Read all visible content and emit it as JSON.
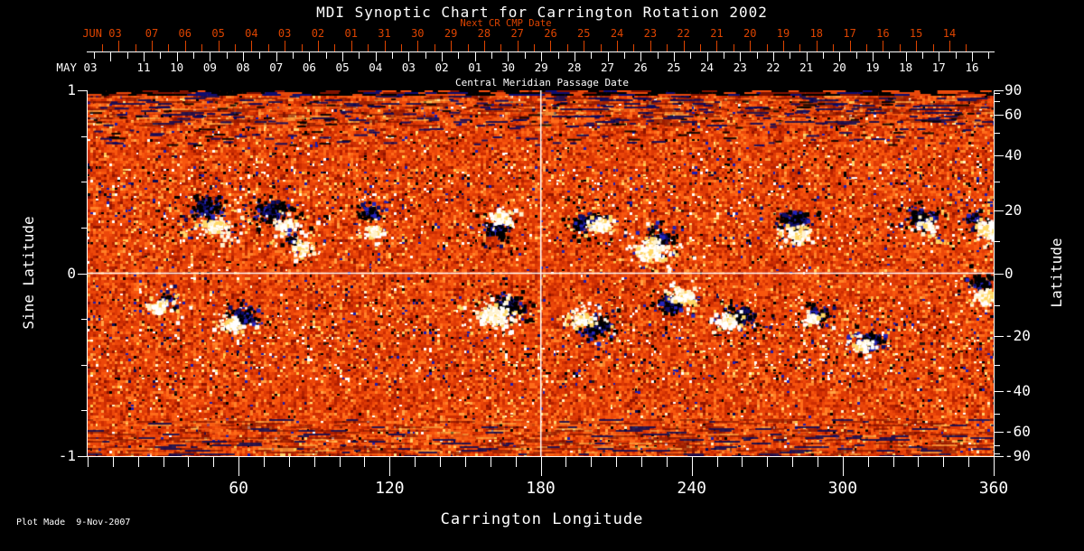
{
  "chart_data": {
    "type": "heatmap",
    "title": "MDI Synoptic Chart for Carrington Rotation 2002",
    "footer": "Plot Made  9-Nov-2007",
    "top_axis_next_cr": {
      "label": "Next CR CMP Date",
      "month_label": "JUN 03",
      "day_labels": [
        "07",
        "06",
        "05",
        "04",
        "03",
        "02",
        "01",
        "31",
        "30",
        "29",
        "28",
        "27",
        "26",
        "25",
        "24",
        "23",
        "22",
        "21",
        "20",
        "19",
        "18",
        "17",
        "16",
        "15",
        "14"
      ]
    },
    "top_axis_cmp": {
      "label": "Central Meridian Passage Date",
      "month_label": "MAY 03",
      "day_labels": [
        "11",
        "10",
        "09",
        "08",
        "07",
        "06",
        "05",
        "04",
        "03",
        "02",
        "01",
        "30",
        "29",
        "28",
        "27",
        "26",
        "25",
        "24",
        "23",
        "22",
        "21",
        "20",
        "19",
        "18",
        "17",
        "16"
      ]
    },
    "x_axis": {
      "label": "Carrington Longitude",
      "range": [
        0,
        360
      ],
      "minor_step": 10,
      "major_ticks": [
        {
          "lon": 60,
          "label": "60"
        },
        {
          "lon": 120,
          "label": "120"
        },
        {
          "lon": 180,
          "label": "180"
        },
        {
          "lon": 240,
          "label": "240"
        },
        {
          "lon": 300,
          "label": "300"
        },
        {
          "lon": 360,
          "label": "360"
        }
      ]
    },
    "y_axis_left": {
      "label": "Sine Latitude",
      "range": [
        -1,
        1
      ],
      "minor_step": 0.25,
      "major_ticks": [
        {
          "v": 1,
          "label": "1"
        },
        {
          "v": 0,
          "label": "0"
        },
        {
          "v": -1,
          "label": "-1"
        }
      ]
    },
    "y_axis_right": {
      "label": "Latitude",
      "major_ticks": [
        {
          "lat": 90,
          "label": "90"
        },
        {
          "lat": 60,
          "label": "60"
        },
        {
          "lat": 40,
          "label": "40"
        },
        {
          "lat": 20,
          "label": "20"
        },
        {
          "lat": 0,
          "label": "0"
        },
        {
          "lat": -20,
          "label": "-20"
        },
        {
          "lat": -40,
          "label": "-40"
        },
        {
          "lat": -60,
          "label": "-60"
        },
        {
          "lat": -90,
          "label": "-90"
        }
      ],
      "minor_ticks": [
        80,
        70,
        50,
        30,
        10,
        -10,
        -30,
        -50,
        -70,
        -80
      ]
    },
    "crosshair": {
      "longitude": 180,
      "latitude": 0
    },
    "colors": {
      "background": "#000000",
      "axis": "#ffffff",
      "date_axis_red": "#dd4400",
      "crosshair": "#ffffff"
    },
    "palette": {
      "base": [
        [
          "#8f1400",
          0.04
        ],
        [
          "#b22000",
          0.13
        ],
        [
          "#cc2d02",
          0.28
        ],
        [
          "#de3a05",
          0.48
        ],
        [
          "#ec470a",
          0.66
        ],
        [
          "#f8560e",
          0.8
        ],
        [
          "#ff6c1a",
          0.9
        ],
        [
          "#ff8128",
          0.96
        ],
        [
          "#ffa245",
          0.99
        ],
        [
          "#ffd36b",
          1.0
        ]
      ],
      "dark": [
        [
          "#000000",
          0.42
        ],
        [
          "#0a0a55",
          0.62
        ],
        [
          "#1d1db0",
          0.86
        ],
        [
          "#32160a",
          1.0
        ]
      ],
      "light": [
        [
          "#ffffff",
          0.4
        ],
        [
          "#fff3c8",
          0.6
        ],
        [
          "#ffe080",
          0.8
        ],
        [
          "#ffc84d",
          1.0
        ]
      ],
      "ar_dark": [
        [
          "#000000",
          0.62
        ],
        [
          "#0d0d66",
          0.82
        ],
        [
          "#2424bb",
          1.0
        ]
      ],
      "ar_light": [
        [
          "#ffffff",
          0.55
        ],
        [
          "#fff3cf",
          0.75
        ],
        [
          "#ffd865",
          1.0
        ]
      ]
    },
    "noise": {
      "seed": 1337,
      "cell": 3,
      "dark_prob": 0.032,
      "light_prob": 0.026,
      "belt_boost_dark": 2.1,
      "belt_boost_light": 2.0
    },
    "active_regions": [
      {
        "lon": 48,
        "lat": 19,
        "sigma": 11,
        "n_dark": 150,
        "n_light": 110,
        "dark_off": [
          -5,
          -9
        ],
        "light_off": [
          5,
          13
        ]
      },
      {
        "lon": 73,
        "lat": 19,
        "sigma": 12,
        "n_dark": 200,
        "n_light": 80,
        "dark_off": [
          0,
          -5
        ],
        "light_off": [
          14,
          11
        ]
      },
      {
        "lon": 84,
        "lat": 9,
        "sigma": 7,
        "n_dark": 25,
        "n_light": 70,
        "dark_off": [
          -8,
          -6
        ],
        "light_off": [
          2,
          2
        ]
      },
      {
        "lon": 112,
        "lat": 18,
        "sigma": 8,
        "n_dark": 85,
        "n_light": 60,
        "dark_off": [
          0,
          -6
        ],
        "light_off": [
          4,
          15
        ]
      },
      {
        "lon": 162,
        "lat": 16,
        "sigma": 9,
        "n_dark": 95,
        "n_light": 90,
        "dark_off": [
          0,
          6
        ],
        "light_off": [
          5,
          -7
        ]
      },
      {
        "lon": 199,
        "lat": 16,
        "sigma": 9,
        "n_dark": 160,
        "n_light": 110,
        "dark_off": [
          -2,
          -2
        ],
        "light_off": [
          12,
          2
        ]
      },
      {
        "lon": 224,
        "lat": 9,
        "sigma": 12,
        "n_dark": 90,
        "n_light": 210,
        "dark_off": [
          7,
          -9
        ],
        "light_off": [
          -2,
          6
        ]
      },
      {
        "lon": 280,
        "lat": 16,
        "sigma": 11,
        "n_dark": 170,
        "n_light": 110,
        "dark_off": [
          0,
          -4
        ],
        "light_off": [
          4,
          12
        ]
      },
      {
        "lon": 330,
        "lat": 18,
        "sigma": 11,
        "n_dark": 120,
        "n_light": 45,
        "dark_off": [
          0,
          0
        ],
        "light_off": [
          10,
          8
        ]
      },
      {
        "lon": 356,
        "lat": 15,
        "sigma": 8,
        "n_dark": 55,
        "n_light": 130,
        "dark_off": [
          -11,
          -9
        ],
        "light_off": [
          3,
          2
        ]
      },
      {
        "lon": 29,
        "lat": -9,
        "sigma": 10,
        "n_dark": 30,
        "n_light": 80,
        "dark_off": [
          5,
          -5
        ],
        "light_off": [
          -3,
          3
        ]
      },
      {
        "lon": 60,
        "lat": -14,
        "sigma": 9,
        "n_dark": 130,
        "n_light": 70,
        "dark_off": [
          3,
          -3
        ],
        "light_off": [
          -9,
          6
        ]
      },
      {
        "lon": 162,
        "lat": -12,
        "sigma": 12,
        "n_dark": 170,
        "n_light": 260,
        "dark_off": [
          13,
          -7
        ],
        "light_off": [
          -3,
          3
        ]
      },
      {
        "lon": 200,
        "lat": -16,
        "sigma": 11,
        "n_dark": 180,
        "n_light": 90,
        "dark_off": [
          4,
          1
        ],
        "light_off": [
          -13,
          -7
        ]
      },
      {
        "lon": 234,
        "lat": -8,
        "sigma": 9,
        "n_dark": 80,
        "n_light": 130,
        "dark_off": [
          -9,
          5
        ],
        "light_off": [
          6,
          -4
        ]
      },
      {
        "lon": 258,
        "lat": -13,
        "sigma": 10,
        "n_dark": 160,
        "n_light": 90,
        "dark_off": [
          2,
          0
        ],
        "light_off": [
          -12,
          6
        ]
      },
      {
        "lon": 290,
        "lat": -13,
        "sigma": 8,
        "n_dark": 70,
        "n_light": 40,
        "dark_off": [
          0,
          0
        ],
        "light_off": [
          -8,
          4
        ]
      },
      {
        "lon": 311,
        "lat": -21,
        "sigma": 9,
        "n_dark": 110,
        "n_light": 50,
        "dark_off": [
          0,
          0
        ],
        "light_off": [
          -11,
          6
        ]
      },
      {
        "lon": 356,
        "lat": -6,
        "sigma": 9,
        "n_dark": 70,
        "n_light": 120,
        "dark_off": [
          -5,
          -13
        ],
        "light_off": [
          3,
          4
        ]
      }
    ]
  }
}
